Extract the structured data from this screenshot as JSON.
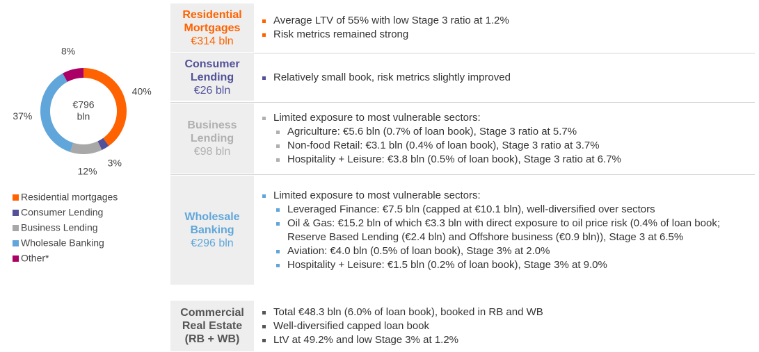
{
  "chart_data": {
    "type": "pie",
    "categories": [
      "Residential mortgages",
      "Consumer Lending",
      "Business Lending",
      "Wholesale Banking",
      "Other*"
    ],
    "values": [
      40,
      3,
      12,
      37,
      8
    ],
    "value_labels": [
      "40%",
      "3%",
      "12%",
      "37%",
      "8%"
    ],
    "colors": [
      "#ff6200",
      "#525199",
      "#a8a8a8",
      "#60a6da",
      "#ab0066"
    ],
    "center_label": [
      "€796",
      "bln"
    ]
  },
  "segments": [
    {
      "name": [
        "Residential",
        "Mortgages"
      ],
      "amount": "€314 bln",
      "color": "#ff6200",
      "bullets": [
        {
          "text": "Average LTV of 55% with low Stage 3 ratio at 1.2%",
          "sub": []
        },
        {
          "text": "Risk metrics remained strong",
          "sub": []
        }
      ]
    },
    {
      "name": [
        "Consumer",
        "Lending"
      ],
      "amount": "€26 bln",
      "color": "#525199",
      "bullets": [
        {
          "text": "Relatively small book, risk metrics slightly improved",
          "sub": []
        }
      ]
    },
    {
      "name": [
        "Business",
        "Lending"
      ],
      "amount": "€98 bln",
      "color": "#b0b0b0",
      "bullets": [
        {
          "text": "Limited exposure to most vulnerable sectors:",
          "sub": [
            "Agriculture: €5.6 bln (0.7% of loan book), Stage 3 ratio at 5.7%",
            "Non-food Retail: €3.1 bln (0.4% of loan book), Stage 3 ratio at 3.7%",
            "Hospitality + Leisure: €3.8 bln (0.5% of loan book), Stage 3 ratio at 6.7%"
          ]
        }
      ]
    },
    {
      "name": [
        "Wholesale",
        "Banking"
      ],
      "amount": "€296 bln",
      "color": "#60a6da",
      "bullets": [
        {
          "text": "Limited exposure to most vulnerable sectors:",
          "sub": [
            "Leveraged Finance: €7.5 bln (capped at €10.1 bln), well-diversified over sectors",
            "Oil & Gas: €15.2 bln of which €3.3 bln with direct exposure to oil price risk (0.4% of loan book; Reserve Based Lending (€2.4 bln) and Offshore business (€0.9 bln)), Stage 3 at 6.5%",
            "Aviation: €4.0 bln (0.5% of loan book), Stage 3% at 2.0%",
            "Hospitality + Leisure: €1.5 bln (0.2% of loan book), Stage 3% at 9.0%"
          ]
        }
      ]
    },
    {
      "name": [
        "Commercial",
        "Real Estate",
        "(RB + WB)"
      ],
      "color": "#555555",
      "bullets": [
        {
          "text": "Total €48.3 bln (6.0% of loan book), booked in RB and WB",
          "sub": []
        },
        {
          "text": "Well-diversified capped loan book",
          "sub": []
        },
        {
          "text": "LtV at 49.2% and low Stage 3% at 1.2%",
          "sub": []
        }
      ]
    }
  ]
}
